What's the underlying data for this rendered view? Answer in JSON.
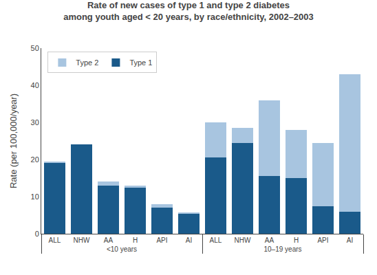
{
  "chart_data": {
    "type": "bar",
    "title": "Rate of new cases of type 1 and type 2 diabetes\namong youth aged < 20 years, by race/ethnicity, 2002–2003",
    "ylabel": "Rate (per 100,000/year)",
    "groups": [
      "<10 years",
      "10–19 years"
    ],
    "categories": [
      "ALL",
      "NHW",
      "AA",
      "H",
      "API",
      "AI",
      "ALL",
      "NHW",
      "AA",
      "H",
      "API",
      "AI"
    ],
    "series": [
      {
        "name": "Type 1",
        "color": "#1a5a8a",
        "values": [
          19.0,
          24.0,
          13.0,
          12.5,
          7.0,
          5.5,
          20.5,
          24.5,
          15.5,
          15.0,
          7.5,
          6.0
        ]
      },
      {
        "name": "Type 2",
        "color": "#a8c5e0",
        "values": [
          0.5,
          0.0,
          1.0,
          0.5,
          1.0,
          0.2,
          9.5,
          4.0,
          20.5,
          13.0,
          17.0,
          37.0
        ]
      }
    ],
    "stacked": true,
    "ylim": [
      0,
      50
    ],
    "yticks": [
      0,
      10,
      20,
      30,
      40,
      50
    ],
    "grid": false,
    "legend": "upper left"
  }
}
